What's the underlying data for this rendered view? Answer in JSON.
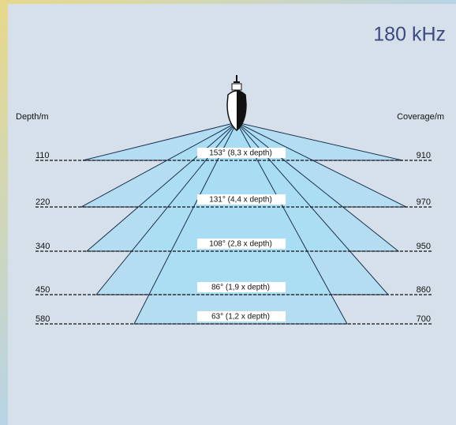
{
  "title": "180 kHz",
  "left_label": "Depth/m",
  "right_label": "Coverage/m",
  "rows": [
    {
      "depth": "110",
      "beam": "153°  (8,3 x depth)",
      "coverage": "910"
    },
    {
      "depth": "220",
      "beam": "131°  (4,4 x depth)",
      "coverage": "970"
    },
    {
      "depth": "340",
      "beam": "108°  (2,8 x depth)",
      "coverage": "950"
    },
    {
      "depth": "450",
      "beam": "86°  (1,9 x depth)",
      "coverage": "860"
    },
    {
      "depth": "580",
      "beam": "63°  (1,2 x depth)",
      "coverage": "700"
    }
  ]
}
